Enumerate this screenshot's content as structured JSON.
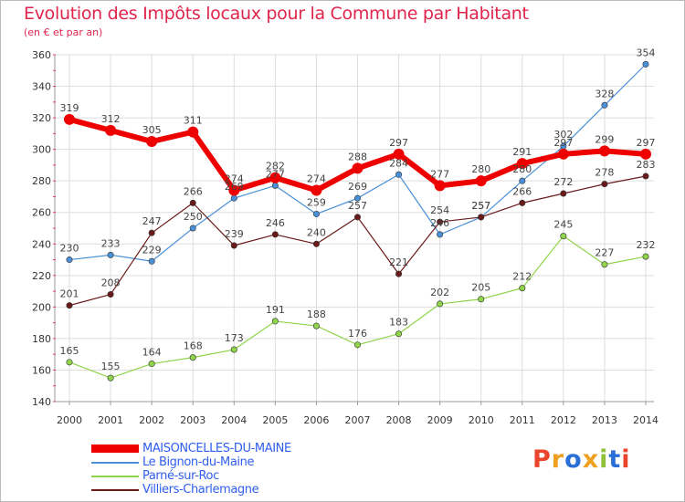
{
  "page": {
    "title": "Evolution des Impôts locaux pour la Commune par Habitant",
    "subtitle": "(en € et par an)"
  },
  "chart_data": {
    "type": "line",
    "title": "Evolution des Impôts locaux pour la Commune par Habitant",
    "subtitle": "(en € et par an)",
    "xlabel": "",
    "ylabel": "",
    "ylim": [
      140,
      360
    ],
    "yticks": [
      140,
      160,
      180,
      200,
      220,
      240,
      260,
      280,
      300,
      320,
      340,
      360
    ],
    "x": [
      2000,
      2001,
      2002,
      2003,
      2004,
      2005,
      2006,
      2007,
      2008,
      2009,
      2010,
      2011,
      2012,
      2013,
      2014
    ],
    "series": [
      {
        "name": "Le Bignon-du-Maine",
        "color": "#4a90d9",
        "values": [
          230,
          233,
          229,
          250,
          269,
          277,
          259,
          269,
          284,
          246,
          257,
          280,
          302,
          328,
          354
        ],
        "labels": [
          230,
          233,
          229,
          250,
          269,
          277,
          259,
          269,
          284,
          246,
          257,
          280,
          302,
          328,
          354
        ]
      },
      {
        "name": "Parné-sur-Roc",
        "color": "#8fd44a",
        "values": [
          165,
          155,
          164,
          168,
          173,
          191,
          188,
          176,
          183,
          202,
          205,
          212,
          245,
          227,
          232
        ],
        "labels": [
          165,
          155,
          164,
          168,
          173,
          191,
          188,
          176,
          183,
          202,
          205,
          212,
          245,
          227,
          232
        ]
      },
      {
        "name": "Villiers-Charlemagne",
        "color": "#6b1a1a",
        "values": [
          201,
          208,
          247,
          266,
          239,
          246,
          240,
          257,
          221,
          254,
          257,
          266,
          272,
          278,
          283
        ],
        "labels": [
          201,
          208,
          247,
          266,
          239,
          246,
          240,
          257,
          221,
          254,
          257,
          266,
          272,
          278,
          283
        ]
      },
      {
        "name": "MAISONCELLES-DU-MAINE",
        "color": "#ee0000",
        "values": [
          319,
          312,
          305,
          311,
          274,
          282,
          274,
          288,
          297,
          277,
          280,
          291,
          297,
          299,
          297
        ],
        "labels": [
          319,
          312,
          305,
          311,
          274,
          282,
          274,
          288,
          297,
          277,
          280,
          291,
          297,
          299,
          297
        ]
      }
    ],
    "legend": {
      "placement": "bottom-left",
      "items": [
        {
          "label": "MAISONCELLES-DU-MAINE",
          "color": "#ee0000",
          "text_color": "#2f5ef0"
        },
        {
          "label": "Le Bignon-du-Maine",
          "color": "#4a90d9",
          "text_color": "#2f5ef0"
        },
        {
          "label": "Parné-sur-Roc",
          "color": "#8fd44a",
          "text_color": "#2f5ef0"
        },
        {
          "label": "Villiers-Charlemagne",
          "color": "#6b1a1a",
          "text_color": "#2f5ef0"
        }
      ]
    }
  },
  "logo": {
    "text": "Proxiti",
    "letter_colors": [
      "#e8452c",
      "#f0a020",
      "#2a6fd6",
      "#f0a020",
      "#8fc23a",
      "#2a6fd6",
      "#e8452c"
    ]
  }
}
